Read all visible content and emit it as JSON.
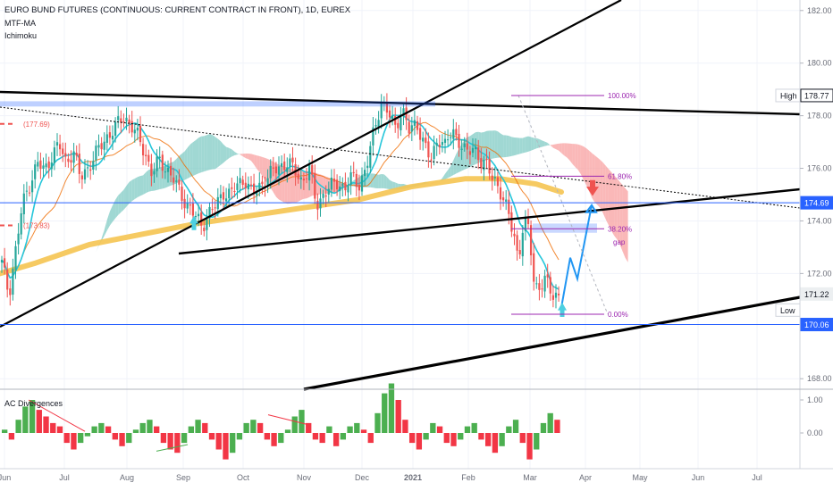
{
  "header": {
    "symbol_title": "EURO BUND FUTURES (CONTINUOUS: CURRENT CONTRACT IN FRONT), 1D, EUREX",
    "indicator_1": "MTF-MA",
    "indicator_2": "Ichimoku"
  },
  "lower_pane": {
    "title": "AC Divergences",
    "ticks": [
      "1.00",
      "0.00"
    ]
  },
  "colors": {
    "candle_up": "#26a69a",
    "candle_down": "#ef5350",
    "cloud_bull": "#80cbc4",
    "cloud_bear": "#f8a0a0",
    "ma_orange": "#f5c451",
    "arrow_blue": "#2196f3",
    "fib": "#9c27b0",
    "price_line": "#2962ff",
    "pos_bar": "#4caf50",
    "neg_bar": "#f23645"
  },
  "chart_data": {
    "type": "candlestick",
    "instrument": "EURO BUND FUTURES (CONTINUOUS: CURRENT CONTRACT IN FRONT), 1D, EUREX",
    "y_ticks": [
      "182.00",
      "180.00",
      "178.00",
      "176.00",
      "174.00",
      "172.00",
      "168.00"
    ],
    "x_ticks": [
      "Jun",
      "Jul",
      "Aug",
      "Sep",
      "Oct",
      "Nov",
      "Dec",
      "2021",
      "Feb",
      "Mar",
      "Apr",
      "May",
      "Jun",
      "Jul"
    ],
    "ylim": [
      167.6,
      182.4
    ],
    "price_labels": {
      "high_label": "High",
      "high_value": "178.77",
      "level_1": "174.69",
      "level_2": "171.22",
      "low_label": "Low",
      "low_value": "170.06"
    },
    "fib_levels": [
      {
        "label": "100.00%",
        "value": 178.77
      },
      {
        "label": "61.80%",
        "value": 175.7
      },
      {
        "label": "38.20%",
        "value": 173.7
      },
      {
        "label": "0.00%",
        "value": 170.45
      }
    ],
    "annotations": {
      "gap": "gap",
      "left_level_1": "(177.69)",
      "left_level_2": "(173.83)"
    },
    "months_x": {
      "Jun": 5,
      "Jul": 72,
      "Aug": 142,
      "Sep": 205,
      "Oct": 272,
      "Nov": 340,
      "Dec": 405,
      "2021": 462,
      "Feb": 524,
      "Mar": 593,
      "Apr": 655,
      "May": 716,
      "Jun2": 781,
      "Jul2": 847
    },
    "close_path": [
      [
        2,
        172.4
      ],
      [
        10,
        171.2
      ],
      [
        18,
        173.0
      ],
      [
        25,
        174.6
      ],
      [
        33,
        175.4
      ],
      [
        42,
        176.2
      ],
      [
        50,
        175.9
      ],
      [
        58,
        176.5
      ],
      [
        66,
        176.9
      ],
      [
        74,
        176.2
      ],
      [
        82,
        176.7
      ],
      [
        90,
        175.6
      ],
      [
        98,
        176.0
      ],
      [
        106,
        176.5
      ],
      [
        114,
        176.9
      ],
      [
        122,
        177.3
      ],
      [
        130,
        177.6
      ],
      [
        138,
        177.95
      ],
      [
        146,
        177.7
      ],
      [
        154,
        177.2
      ],
      [
        162,
        176.6
      ],
      [
        170,
        175.8
      ],
      [
        178,
        176.3
      ],
      [
        186,
        176.0
      ],
      [
        194,
        175.6
      ],
      [
        202,
        175.0
      ],
      [
        210,
        174.6
      ],
      [
        218,
        174.2
      ],
      [
        226,
        173.8
      ],
      [
        234,
        174.3
      ],
      [
        242,
        174.6
      ],
      [
        250,
        175.1
      ],
      [
        258,
        175.0
      ],
      [
        266,
        175.4
      ],
      [
        274,
        175.6
      ],
      [
        282,
        175.0
      ],
      [
        290,
        175.3
      ],
      [
        298,
        175.6
      ],
      [
        306,
        175.9
      ],
      [
        314,
        176.1
      ],
      [
        322,
        176.2
      ],
      [
        330,
        175.9
      ],
      [
        338,
        175.5
      ],
      [
        346,
        176.0
      ],
      [
        354,
        174.6
      ],
      [
        362,
        175.0
      ],
      [
        370,
        175.3
      ],
      [
        378,
        175.5
      ],
      [
        386,
        175.2
      ],
      [
        394,
        175.7
      ],
      [
        402,
        175.4
      ],
      [
        410,
        176.0
      ],
      [
        418,
        177.4
      ],
      [
        426,
        178.5
      ],
      [
        434,
        178.1
      ],
      [
        442,
        177.6
      ],
      [
        450,
        178.2
      ],
      [
        458,
        177.4
      ],
      [
        466,
        177.8
      ],
      [
        474,
        176.9
      ],
      [
        482,
        176.3
      ],
      [
        490,
        177.2
      ],
      [
        498,
        176.8
      ],
      [
        506,
        177.5
      ],
      [
        514,
        177.0
      ],
      [
        522,
        176.5
      ],
      [
        530,
        176.9
      ],
      [
        538,
        176.2
      ],
      [
        546,
        176.0
      ],
      [
        554,
        175.6
      ],
      [
        562,
        174.8
      ],
      [
        570,
        174.2
      ],
      [
        576,
        173.4
      ],
      [
        580,
        172.4
      ],
      [
        586,
        173.9
      ],
      [
        592,
        173.7
      ],
      [
        598,
        171.6
      ],
      [
        604,
        171.3
      ],
      [
        610,
        171.8
      ],
      [
        616,
        171.4
      ],
      [
        622,
        171.2
      ],
      [
        628,
        170.8
      ]
    ],
    "forecast_path": [
      [
        628,
        170.7
      ],
      [
        638,
        172.6
      ],
      [
        646,
        171.8
      ],
      [
        662,
        174.6
      ]
    ],
    "ac_histogram": [
      0.1,
      -0.2,
      0.4,
      0.8,
      1.0,
      0.7,
      0.5,
      0.3,
      0.2,
      -0.3,
      -0.5,
      -0.3,
      -0.1,
      0.2,
      0.3,
      0.2,
      -0.2,
      -0.4,
      -0.3,
      0.1,
      0.3,
      0.4,
      0.2,
      -0.3,
      -0.5,
      -0.6,
      -0.3,
      0.2,
      0.4,
      0.3,
      -0.2,
      -0.5,
      -0.8,
      -0.6,
      -0.2,
      0.3,
      0.4,
      0.3,
      -0.2,
      -0.4,
      -0.3,
      0.1,
      0.5,
      0.7,
      0.3,
      -0.2,
      -0.3,
      0.2,
      -0.4,
      -0.2,
      0.2,
      0.3,
      0.1,
      -0.3,
      0.6,
      1.2,
      1.5,
      1.0,
      0.4,
      -0.3,
      -0.5,
      -0.2,
      0.3,
      0.2,
      -0.3,
      -0.4,
      -0.2,
      0.2,
      0.3,
      -0.2,
      -0.4,
      -0.6,
      -0.4,
      0.2,
      0.4,
      -0.3,
      -0.8,
      -0.5,
      0.3,
      0.6,
      0.4
    ]
  }
}
